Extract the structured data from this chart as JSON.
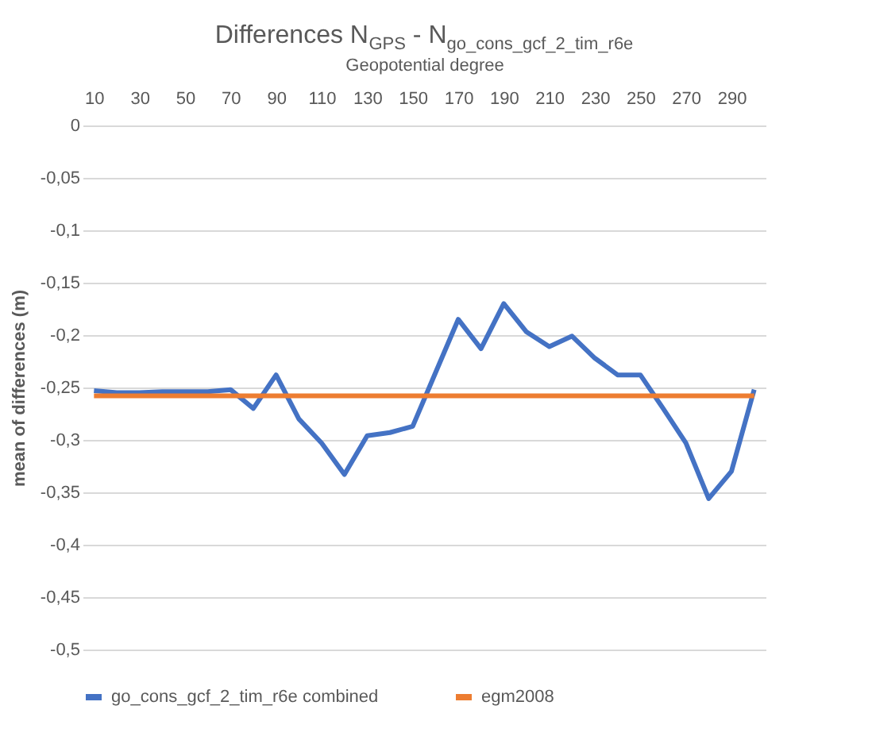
{
  "chart_data": {
    "type": "line",
    "title": "Differences N$_{GPS}$ - N$_{go_cons_gcf_2_tim_r6e}$",
    "xlabel": "Geopotential degree",
    "ylabel": "mean of differences (m)",
    "categories": [
      "10",
      null,
      "30",
      null,
      "50",
      null,
      "70",
      null,
      "90",
      null,
      "110",
      null,
      "130",
      null,
      "150",
      null,
      "170",
      null,
      "190",
      null,
      "210",
      null,
      "230",
      null,
      "250",
      null,
      "270",
      null,
      "290",
      null
    ],
    "series": [
      {
        "name": "go_cons_gcf_2_tim_r6e combined",
        "color": "#4472c4",
        "values": [
          -0.253,
          -0.255,
          -0.255,
          -0.254,
          -0.254,
          -0.254,
          -0.252,
          -0.27,
          -0.238,
          -0.28,
          -0.303,
          -0.333,
          -0.296,
          -0.293,
          -0.287,
          -0.236,
          -0.185,
          -0.213,
          -0.17,
          -0.197,
          -0.211,
          -0.201,
          -0.222,
          -0.238,
          -0.238,
          -0.27,
          -0.303,
          -0.356,
          -0.33,
          -0.252
        ]
      },
      {
        "name": "egm2008",
        "color": "#ed7d31",
        "values": [
          -0.258,
          -0.258,
          -0.258,
          -0.258,
          -0.258,
          -0.258,
          -0.258,
          -0.258,
          -0.258,
          -0.258,
          -0.258,
          -0.258,
          -0.258,
          -0.258,
          -0.258,
          -0.258,
          -0.258,
          -0.258,
          -0.258,
          -0.258,
          -0.258,
          -0.258,
          -0.258,
          -0.258,
          -0.258,
          -0.258,
          -0.258,
          -0.258,
          -0.258,
          -0.258
        ]
      }
    ],
    "ylim": [
      -0.5,
      0
    ],
    "yticks": [
      0,
      {
        "value": -0.05,
        "label": "-0,05"
      },
      {
        "value": -0.1,
        "label": "-0,1"
      },
      {
        "value": -0.15,
        "label": "-0,15"
      },
      {
        "value": -0.2,
        "label": "-0,2"
      },
      {
        "value": -0.25,
        "label": "-0,25"
      },
      {
        "value": -0.3,
        "label": "-0,3"
      },
      {
        "value": -0.35,
        "label": "-0,35"
      },
      {
        "value": -0.4,
        "label": "-0,4"
      },
      {
        "value": -0.45,
        "label": "-0,45"
      },
      {
        "value": -0.5,
        "label": "-0,5"
      }
    ],
    "grid": "y",
    "legend": "bottom",
    "marker": "none",
    "line_style": "solid"
  }
}
